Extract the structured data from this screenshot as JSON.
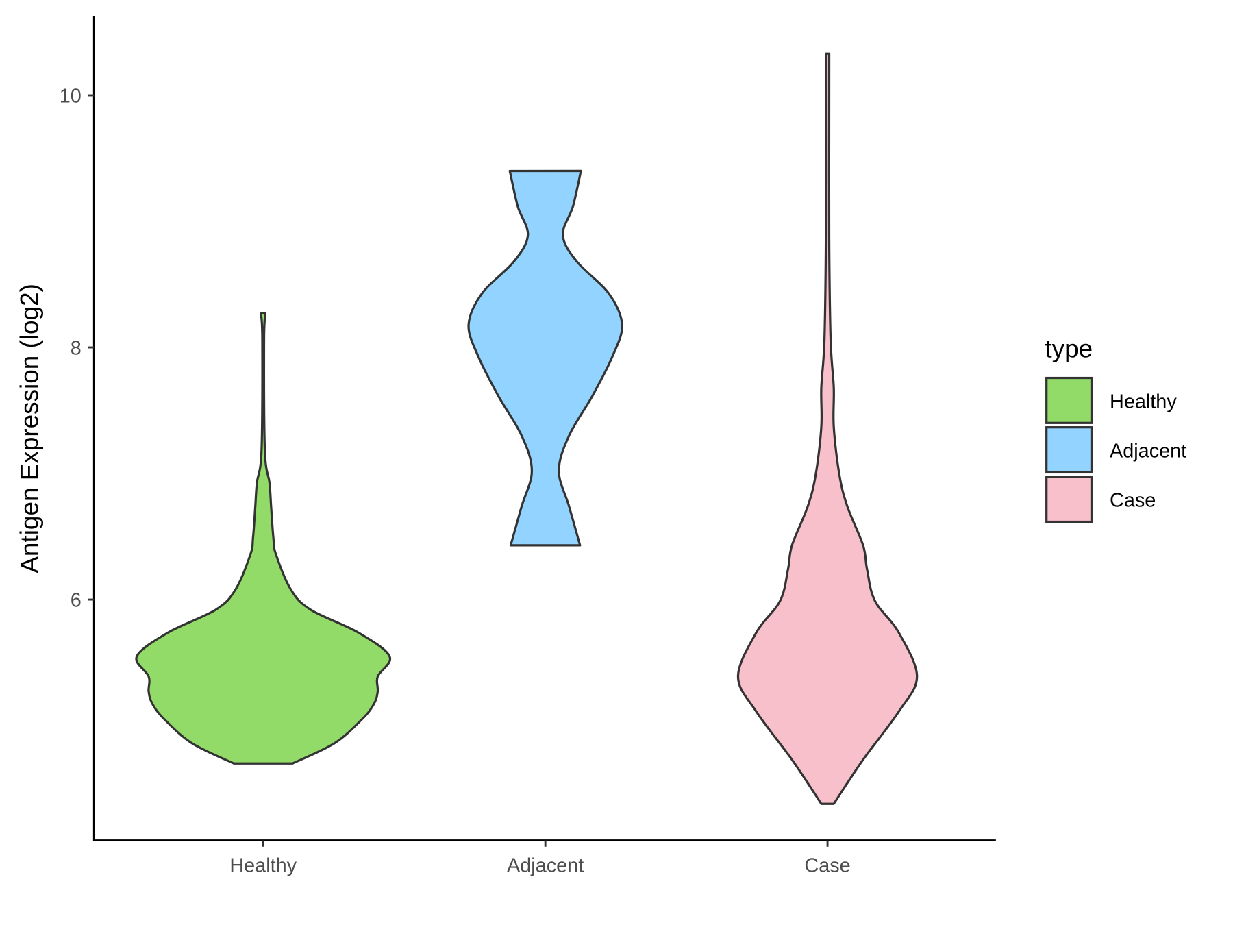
{
  "chart_data": {
    "type": "violin",
    "title": "",
    "xlabel": "",
    "ylabel": "Antigen Expression (log2)",
    "ylim": [
      4.09,
      10.63
    ],
    "yticks": [
      6,
      8,
      10
    ],
    "ytick_labels": [
      "6",
      "8",
      "10"
    ],
    "categories": [
      "Healthy",
      "Adjacent",
      "Case"
    ],
    "grid": false,
    "legend": {
      "title": "type",
      "position": "right",
      "entries": [
        "Healthy",
        "Adjacent",
        "Case"
      ]
    },
    "colors": {
      "Healthy": "#93DB69",
      "Adjacent": "#93D3FF",
      "Case": "#F7C0CB",
      "outline": "#333333"
    },
    "series": [
      {
        "name": "Healthy",
        "profile_y": [
          8.27,
          8.06,
          7.18,
          6.93,
          6.74,
          6.49,
          6.36,
          6.08,
          5.92,
          5.74,
          5.55,
          5.39,
          5.27,
          5.17,
          5.05,
          4.86,
          4.7
        ],
        "half_width": [
          0.008,
          0.003,
          0.006,
          0.022,
          0.028,
          0.036,
          0.045,
          0.098,
          0.168,
          0.336,
          0.448,
          0.406,
          0.406,
          0.392,
          0.35,
          0.252,
          0.104
        ]
      },
      {
        "name": "Adjacent",
        "profile_y": [
          9.4,
          9.12,
          8.89,
          8.68,
          8.43,
          8.18,
          7.93,
          7.62,
          7.3,
          7.02,
          6.74,
          6.43
        ],
        "half_width": [
          0.126,
          0.098,
          0.062,
          0.112,
          0.224,
          0.272,
          0.238,
          0.168,
          0.084,
          0.048,
          0.084,
          0.123
        ]
      },
      {
        "name": "Case",
        "profile_y": [
          10.33,
          10.0,
          8.87,
          8.06,
          7.68,
          7.37,
          6.99,
          6.74,
          6.43,
          6.24,
          5.99,
          5.74,
          5.39,
          5.11,
          4.73,
          4.38
        ],
        "half_width": [
          0.006,
          0.006,
          0.006,
          0.011,
          0.022,
          0.022,
          0.042,
          0.07,
          0.126,
          0.14,
          0.168,
          0.252,
          0.317,
          0.252,
          0.126,
          0.022
        ]
      }
    ]
  }
}
